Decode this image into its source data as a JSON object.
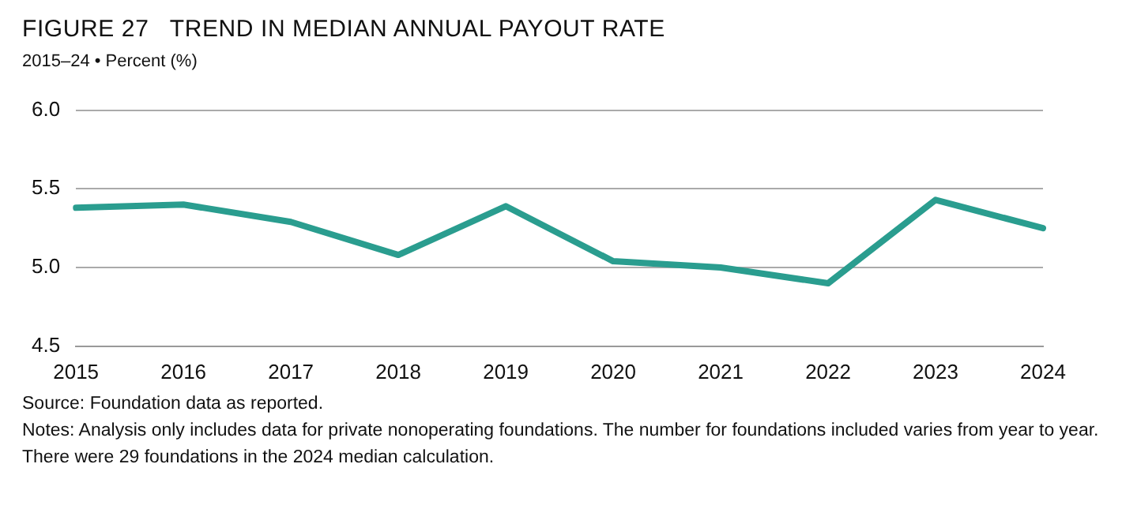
{
  "chart_data": {
    "type": "line",
    "title": "FIGURE 27   TREND IN MEDIAN ANNUAL PAYOUT RATE",
    "subtitle": "2015–24 • Percent (%)",
    "categories": [
      "2015",
      "2016",
      "2017",
      "2018",
      "2019",
      "2020",
      "2021",
      "2022",
      "2023",
      "2024"
    ],
    "series": [
      {
        "color": "#2a9d8f",
        "values": [
          5.38,
          5.4,
          5.29,
          5.08,
          5.39,
          5.04,
          5.0,
          4.9,
          5.43,
          5.25
        ]
      }
    ],
    "ylim": [
      4.5,
      6.0
    ],
    "yticks": [
      {
        "value": 4.5,
        "label": "4.5"
      },
      {
        "value": 5.0,
        "label": "5.0"
      },
      {
        "value": 5.5,
        "label": "5.5"
      },
      {
        "value": 6.0,
        "label": "6.0"
      }
    ],
    "grid": "y",
    "marker": "none",
    "line_style": "solid",
    "annotations": [
      "Source: Foundation data as reported.",
      "Notes: Analysis only includes data for private nonoperating foundations. The number for foundations included varies from year to year. There were 29 foundations in the 2024 median calculation."
    ]
  }
}
